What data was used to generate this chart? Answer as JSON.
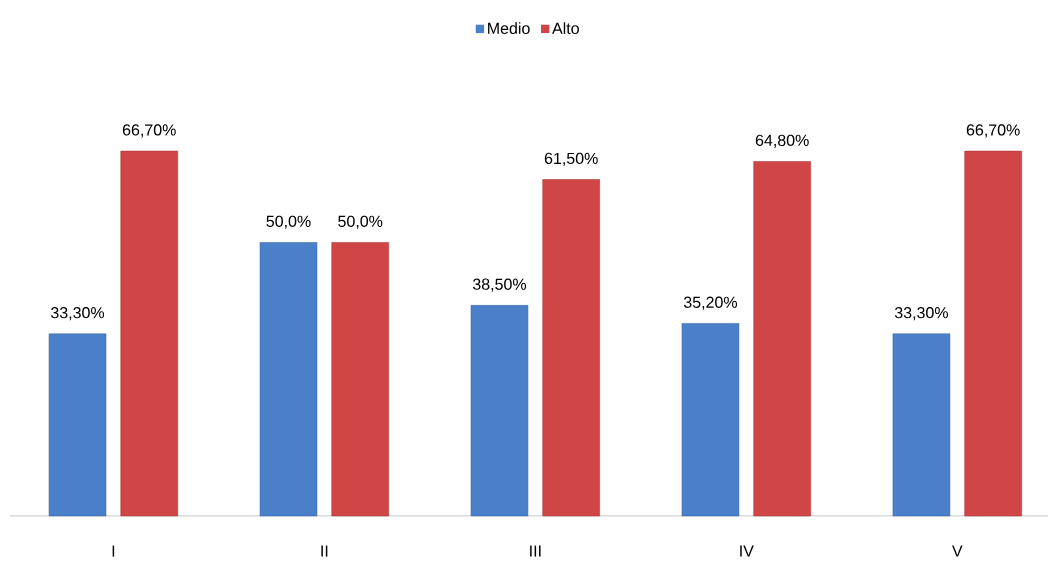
{
  "chart_data": {
    "type": "bar",
    "categories": [
      "I",
      "II",
      "III",
      "IV",
      "V"
    ],
    "legend": "top",
    "series": [
      {
        "name": "Medio",
        "color": "#4a7fc9",
        "values": [
          33.3,
          50.0,
          38.5,
          35.2,
          33.3
        ],
        "value_labels": [
          "33,30%",
          "50,0%",
          "38,50%",
          "35,20%",
          "33,30%"
        ]
      },
      {
        "name": "Alto",
        "color": "#d04545",
        "values": [
          66.7,
          50.0,
          61.5,
          64.8,
          66.7
        ],
        "value_labels": [
          "66,70%",
          "50,0%",
          "61,50%",
          "64,80%",
          "66,70%"
        ]
      }
    ]
  }
}
